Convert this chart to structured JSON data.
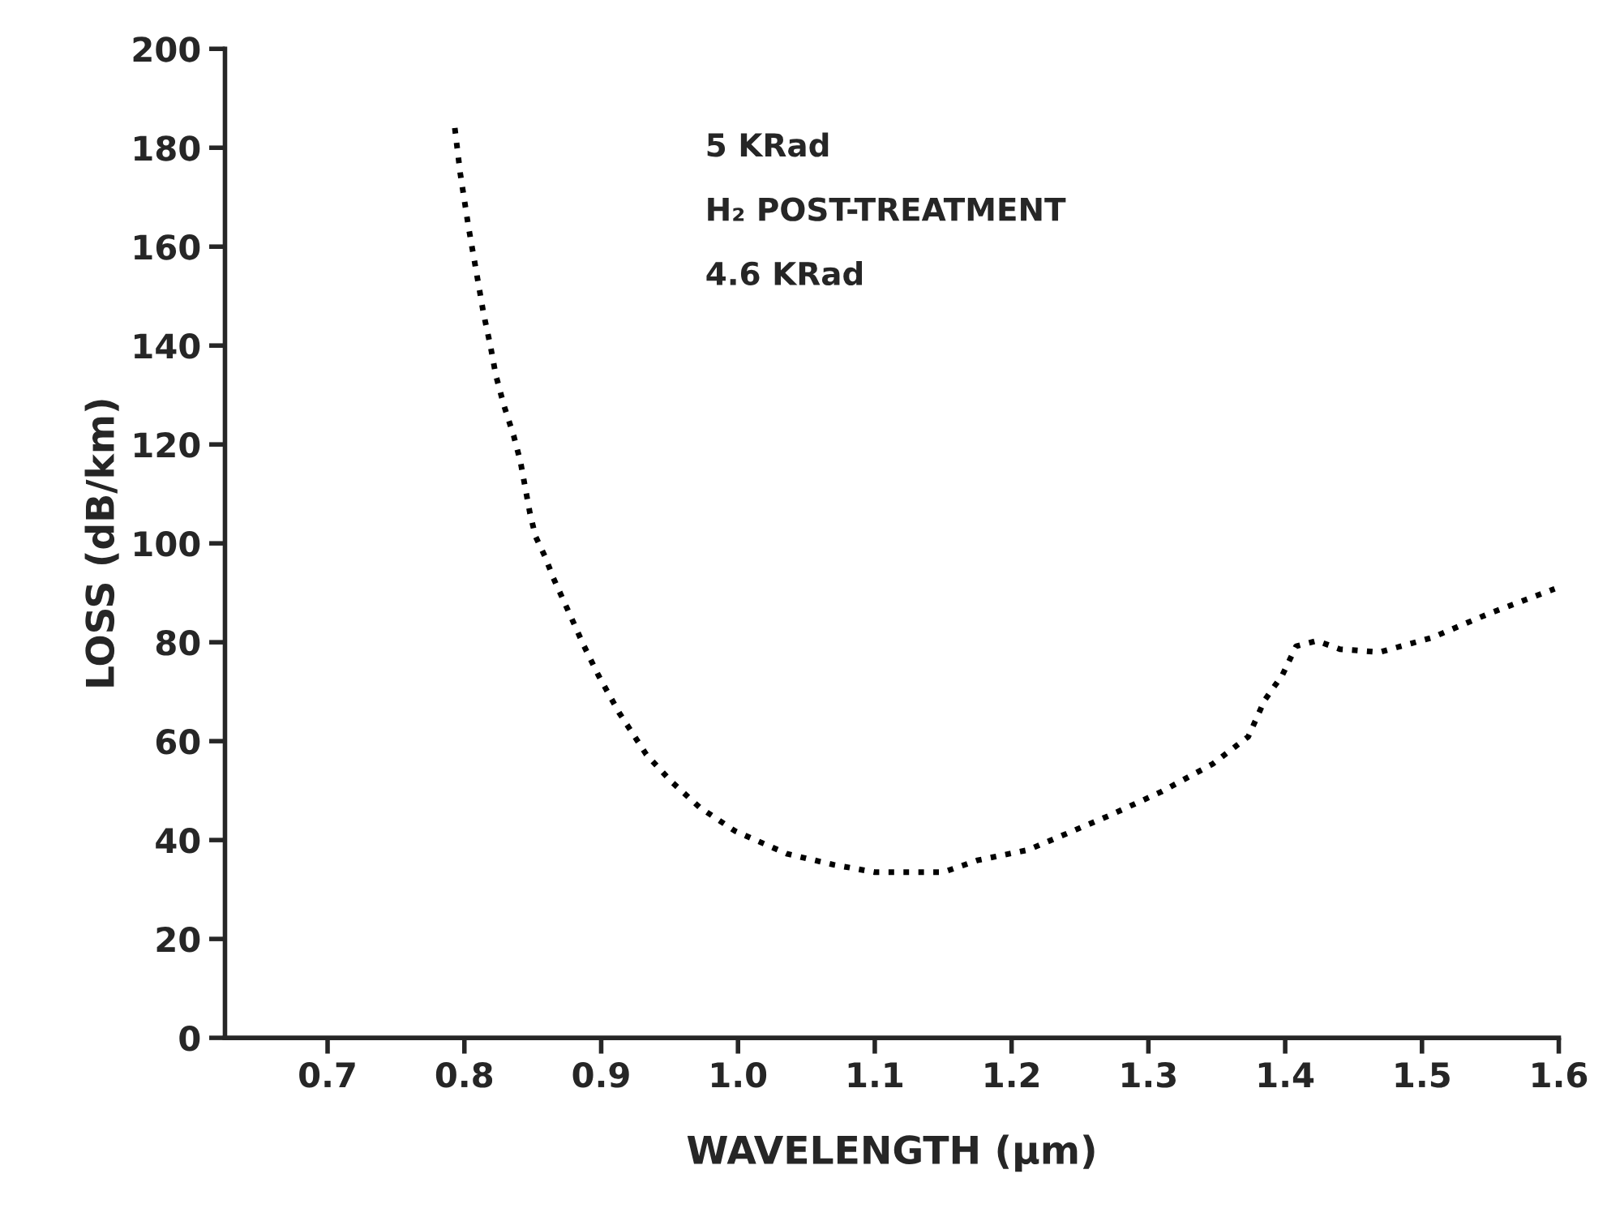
{
  "chart_data": {
    "type": "line",
    "xlabel": "WAVELENGTH (μm)",
    "ylabel": "LOSS (dB/km)",
    "annotations": [
      "5 KRad",
      "H₂ POST-TREATMENT",
      "4.6 KRad"
    ],
    "xlim": [
      0.625,
      1.6
    ],
    "ylim": [
      0,
      200
    ],
    "xticks": [
      0.7,
      0.8,
      0.9,
      {
        "value": 1.0,
        "label": "1.0"
      },
      1.1,
      1.2,
      1.3,
      1.4,
      1.5,
      1.6
    ],
    "yticks": [
      0,
      20,
      40,
      60,
      80,
      100,
      120,
      140,
      160,
      180,
      200
    ],
    "grid": false,
    "line_style": "dotted",
    "color": "#000000",
    "x": [
      0.793,
      0.797,
      0.803,
      0.809,
      0.814,
      0.819,
      0.823,
      0.829,
      0.836,
      0.841,
      0.848,
      0.852,
      0.859,
      0.865,
      0.876,
      0.887,
      0.898,
      0.913,
      0.933,
      0.951,
      0.972,
      0.998,
      1.036,
      1.07,
      1.1,
      1.15,
      1.175,
      1.212,
      1.271,
      1.309,
      1.347,
      1.373,
      1.385,
      1.398,
      1.408,
      1.423,
      1.44,
      1.469,
      1.507,
      1.549,
      1.597
    ],
    "values": [
      184,
      174.8,
      164,
      154.5,
      146.5,
      140,
      134,
      127.8,
      121.8,
      116.5,
      106,
      101.4,
      97.3,
      93,
      86.3,
      79.5,
      73.3,
      65.8,
      57.3,
      51.9,
      46.6,
      41.8,
      37.2,
      35,
      33.5,
      33.5,
      35.9,
      38,
      44.9,
      49.7,
      55.4,
      60.9,
      68.3,
      73.4,
      79.2,
      80.3,
      78.6,
      78,
      80.9,
      85.8,
      90.8
    ]
  }
}
